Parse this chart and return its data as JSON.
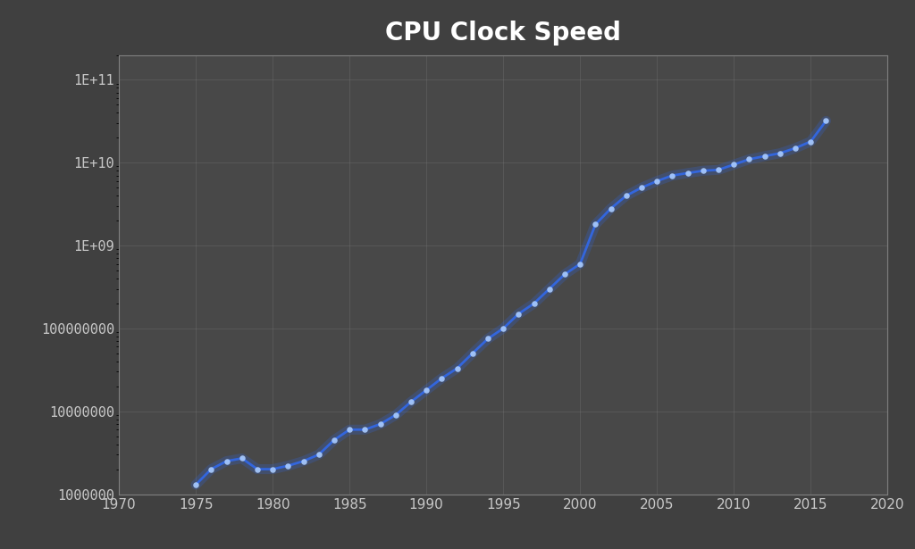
{
  "title": "CPU Clock Speed",
  "background_color": "#404040",
  "plot_bg_color": "#484848",
  "line_color": "#3366dd",
  "marker_color": "#aaccff",
  "grid_color": "#808080",
  "text_color": "#c8c8c8",
  "title_color": "#ffffff",
  "xlim": [
    1970,
    2020
  ],
  "ylim_log": [
    1000000,
    200000000000
  ],
  "yticks": [
    1000000,
    10000000,
    100000000,
    1000000000,
    10000000000,
    100000000000
  ],
  "ytick_labels": [
    "1000000",
    "10000000",
    "100000000",
    "1E+09",
    "1E+10",
    "1E+11"
  ],
  "xticks": [
    1970,
    1975,
    1980,
    1985,
    1990,
    1995,
    2000,
    2005,
    2010,
    2015,
    2020
  ],
  "data": [
    [
      1975,
      1300000
    ],
    [
      1976,
      2000000
    ],
    [
      1977,
      2500000
    ],
    [
      1978,
      2700000
    ],
    [
      1979,
      2000000
    ],
    [
      1980,
      2000000
    ],
    [
      1981,
      2200000
    ],
    [
      1982,
      2500000
    ],
    [
      1983,
      3000000
    ],
    [
      1984,
      4500000
    ],
    [
      1985,
      6000000
    ],
    [
      1986,
      6000000
    ],
    [
      1987,
      7000000
    ],
    [
      1988,
      9000000
    ],
    [
      1989,
      13000000
    ],
    [
      1990,
      18000000
    ],
    [
      1991,
      25000000
    ],
    [
      1992,
      33000000
    ],
    [
      1993,
      50000000
    ],
    [
      1994,
      75000000
    ],
    [
      1995,
      100000000
    ],
    [
      1996,
      150000000
    ],
    [
      1997,
      200000000
    ],
    [
      1998,
      300000000
    ],
    [
      1999,
      450000000
    ],
    [
      2000,
      600000000
    ],
    [
      2001,
      1800000000
    ],
    [
      2002,
      2800000000
    ],
    [
      2003,
      4000000000
    ],
    [
      2004,
      5000000000
    ],
    [
      2005,
      6000000000
    ],
    [
      2006,
      7000000000
    ],
    [
      2007,
      7500000000
    ],
    [
      2008,
      8000000000
    ],
    [
      2009,
      8200000000
    ],
    [
      2010,
      9500000000
    ],
    [
      2011,
      11000000000
    ],
    [
      2012,
      12000000000
    ],
    [
      2013,
      13000000000
    ],
    [
      2014,
      15000000000
    ],
    [
      2015,
      18000000000
    ],
    [
      2016,
      32000000000
    ]
  ]
}
